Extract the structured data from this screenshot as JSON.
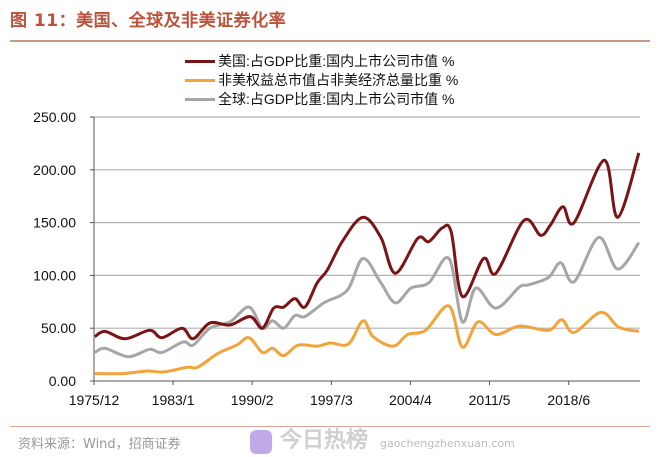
{
  "title": "图 11：美国、全球及非美证券化率",
  "source": "资料来源：Wind，招商证券",
  "watermark": {
    "title": "今日热榜",
    "url": "gaochengzhenxuan.com"
  },
  "chart_data": {
    "type": "line",
    "title": "",
    "xlabel": "",
    "ylabel": "",
    "ylim": [
      0,
      250
    ],
    "xlim": [
      1975.92,
      2024.8
    ],
    "grid": "horizontal",
    "legend_position": "top-center",
    "y_ticks": [
      "0.00",
      "50.00",
      "100.00",
      "150.00",
      "200.00",
      "250.00"
    ],
    "y_tick_values": [
      0,
      50,
      100,
      150,
      200,
      250
    ],
    "x_ticks": [
      "1975/12",
      "1983/1",
      "1990/2",
      "1997/3",
      "2004/4",
      "2011/5",
      "2018/6"
    ],
    "x_tick_values": [
      1975.92,
      1983.0,
      1990.08,
      1997.17,
      2004.25,
      2011.33,
      2018.42
    ],
    "series": [
      {
        "name": "美国:占GDP比重:国内上市公司市值 %",
        "color": "#7b1416",
        "x": [
          1976.0,
          1976.9,
          1978.7,
          1980.9,
          1982.0,
          1983.8,
          1984.8,
          1986.3,
          1988.1,
          1989.9,
          1991.0,
          1992.0,
          1992.9,
          1993.9,
          1994.8,
          1995.9,
          1996.8,
          1998.2,
          2000.0,
          2001.6,
          2002.9,
          2004.9,
          2005.9,
          2007.1,
          2007.9,
          2008.9,
          2010.8,
          2011.9,
          2014.4,
          2015.9,
          2016.8,
          2017.9,
          2018.9,
          2021.6,
          2022.8,
          2024.7
        ],
        "y": [
          42,
          47,
          40,
          48,
          41,
          50,
          40,
          55,
          53,
          61,
          50,
          69,
          70,
          78,
          70,
          93,
          105,
          133,
          155,
          136,
          102,
          135,
          132,
          145,
          141,
          80,
          116,
          102,
          152,
          138,
          148,
          165,
          150,
          209,
          155,
          216
        ]
      },
      {
        "name": "非美权益总市值占非美经济总量比重 %",
        "color": "#f0a43a",
        "x": [
          1976.0,
          1978.5,
          1980.7,
          1982.1,
          1984.3,
          1985.2,
          1987.0,
          1988.7,
          1989.8,
          1991.0,
          1991.9,
          1992.9,
          1994.2,
          1995.9,
          1997.1,
          1998.7,
          2000.0,
          2000.9,
          2002.7,
          2004.0,
          2005.6,
          2007.7,
          2008.9,
          2010.3,
          2011.9,
          2014.0,
          2016.6,
          2017.8,
          2018.9,
          2021.3,
          2022.9,
          2024.7
        ],
        "y": [
          7,
          7,
          9.5,
          8.5,
          13,
          13,
          26,
          34,
          41,
          27,
          31,
          24,
          34,
          33,
          36,
          35,
          57,
          42,
          33,
          44,
          48,
          71,
          32,
          56,
          44,
          52,
          48,
          58,
          46,
          65,
          51,
          47
        ]
      },
      {
        "name": "全球:占GDP比重:国内上市公司市值 %",
        "color": "#a6a6a6",
        "x": [
          1976.0,
          1976.9,
          1979.0,
          1980.9,
          1982.0,
          1983.9,
          1984.8,
          1986.3,
          1988.1,
          1989.8,
          1991.0,
          1991.9,
          1992.9,
          1993.9,
          1994.8,
          1996.5,
          1998.6,
          2000.0,
          2001.6,
          2002.9,
          2004.3,
          2005.9,
          2007.7,
          2008.9,
          2010.1,
          2011.9,
          2014.0,
          2014.8,
          2016.6,
          2017.7,
          2018.9,
          2021.1,
          2022.8,
          2024.7
        ],
        "y": [
          27,
          31,
          23,
          30,
          27,
          37,
          34,
          50,
          56,
          70,
          50,
          57,
          50,
          62,
          61,
          74,
          86,
          116,
          93,
          74,
          88,
          93,
          116,
          56,
          88,
          69,
          89,
          91,
          98,
          112,
          94,
          136,
          106,
          131
        ]
      }
    ]
  }
}
